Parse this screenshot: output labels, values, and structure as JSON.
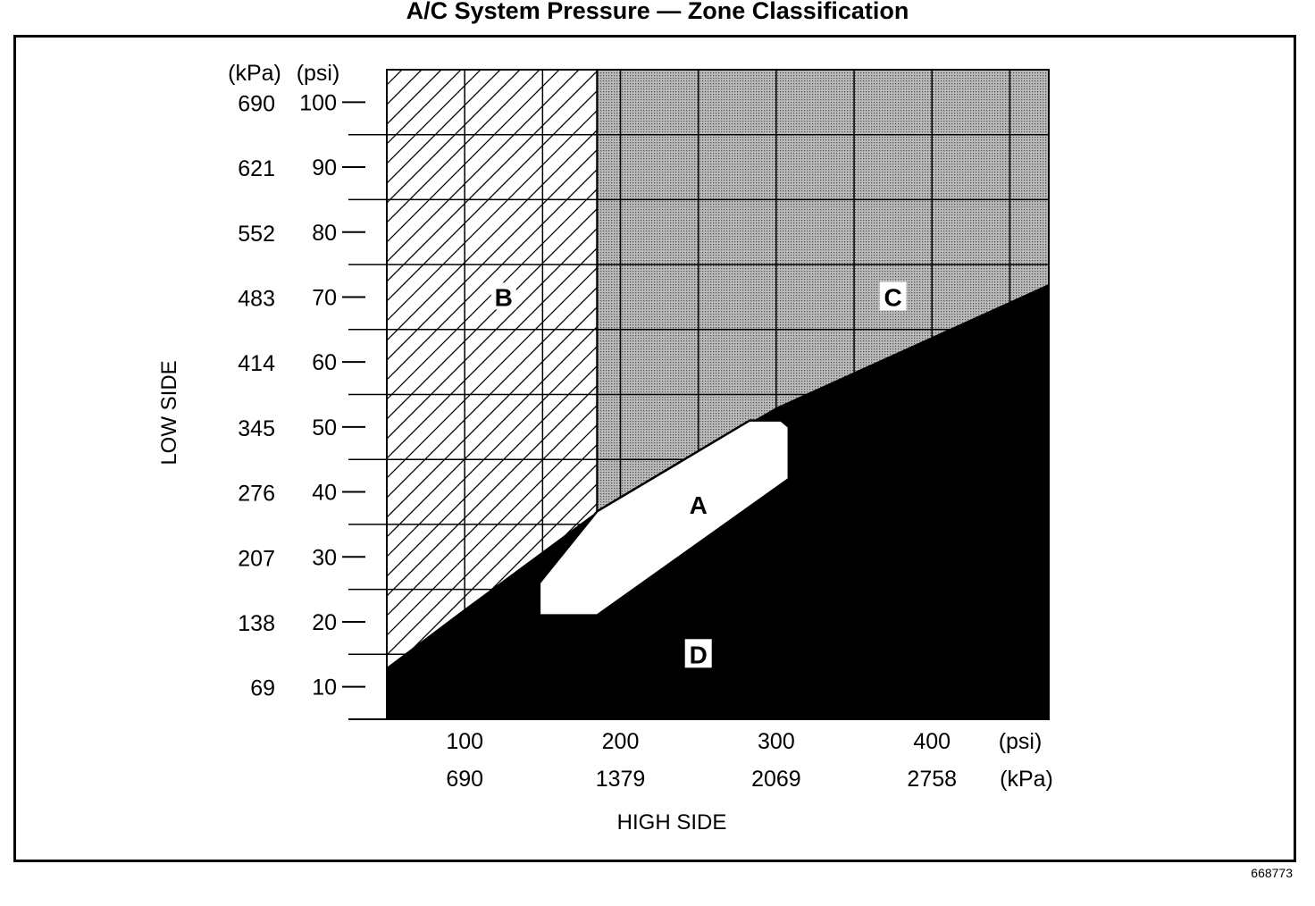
{
  "title": "A/C System Pressure — Zone Classification",
  "figure_number": "668773",
  "chart_data": {
    "type": "area",
    "xlabel": "HIGH SIDE",
    "ylabel": "LOW SIDE",
    "x_units": [
      "(psi)",
      "(kPa)"
    ],
    "y_units": [
      "(kPa)",
      "(psi)"
    ],
    "xlim": [
      50,
      475
    ],
    "ylim": [
      5,
      105
    ],
    "x_ticks": [
      {
        "psi": 100,
        "kpa": "690"
      },
      {
        "psi": 200,
        "kpa": "1379"
      },
      {
        "psi": 300,
        "kpa": "2069"
      },
      {
        "psi": 400,
        "kpa": "2758"
      }
    ],
    "y_ticks": [
      {
        "psi": 10,
        "kpa": "69"
      },
      {
        "psi": 20,
        "kpa": "138"
      },
      {
        "psi": 30,
        "kpa": "207"
      },
      {
        "psi": 40,
        "kpa": "276"
      },
      {
        "psi": 50,
        "kpa": "345"
      },
      {
        "psi": 60,
        "kpa": "414"
      },
      {
        "psi": 70,
        "kpa": "483"
      },
      {
        "psi": 80,
        "kpa": "552"
      },
      {
        "psi": 90,
        "kpa": "621"
      },
      {
        "psi": 100,
        "kpa": "690"
      }
    ],
    "grid_x": [
      100,
      150,
      200,
      250,
      300,
      350,
      400,
      450
    ],
    "grid_y": [
      15,
      25,
      35,
      45,
      55,
      65,
      75,
      85,
      95
    ],
    "zone_boundary_x": 185,
    "zone_top": 105,
    "zones": [
      {
        "label": "A",
        "fill": "white",
        "label_at": [
          250,
          38
        ],
        "polygon": [
          [
            148,
            25
          ],
          [
            148,
            21
          ],
          [
            185,
            21
          ],
          [
            308,
            42
          ],
          [
            308,
            50
          ],
          [
            303,
            51
          ],
          [
            283,
            51
          ],
          [
            185,
            37
          ],
          [
            148,
            26
          ]
        ]
      },
      {
        "label": "B",
        "fill": "hatch",
        "label_at": [
          125,
          70
        ]
      },
      {
        "label": "C",
        "fill": "dots",
        "label_at": [
          375,
          70
        ]
      },
      {
        "label": "D",
        "fill": "black",
        "label_at": [
          250,
          15
        ],
        "boundary": [
          [
            50,
            13
          ],
          [
            100,
            22
          ],
          [
            185,
            37
          ],
          [
            300,
            53
          ],
          [
            475,
            72
          ]
        ]
      }
    ]
  },
  "colors": {
    "ink": "#000000",
    "paper": "#ffffff",
    "dots": "#8f8f8f"
  }
}
